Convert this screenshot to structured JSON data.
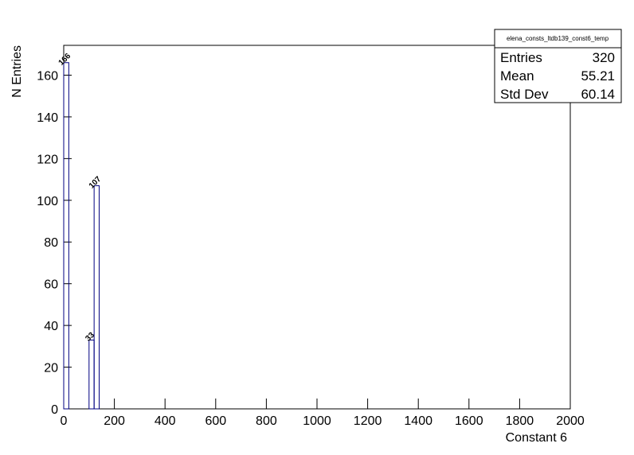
{
  "chart_data": {
    "type": "histogram",
    "x_label": "Constant 6",
    "y_label": "N Entries",
    "bins": [
      0,
      20,
      40,
      60,
      80,
      100,
      120,
      140,
      160,
      180,
      200,
      220,
      240,
      260,
      280,
      300,
      320,
      340,
      360,
      380,
      400,
      420,
      440,
      460,
      480,
      500,
      520,
      540,
      560,
      580,
      600,
      620,
      640,
      660,
      680,
      700,
      720,
      740,
      760,
      780,
      800,
      820,
      840,
      860,
      880,
      900,
      920,
      940,
      960,
      980,
      1000,
      1020,
      1040,
      1060,
      1080,
      1100,
      1120,
      1140,
      1160,
      1180,
      1200,
      1220,
      1240,
      1260,
      1280,
      1300,
      1320,
      1340,
      1360,
      1380,
      1400,
      1420,
      1440,
      1460,
      1480,
      1500,
      1520,
      1540,
      1560,
      1580,
      1600,
      1620,
      1640,
      1660,
      1680,
      1700,
      1720,
      1740,
      1760,
      1780,
      1800,
      1820,
      1840,
      1860,
      1880,
      1900,
      1920,
      1940,
      1960,
      1980,
      2000
    ],
    "values": [
      166,
      0,
      0,
      0,
      0,
      33,
      107,
      0,
      0,
      0,
      0,
      0,
      0,
      0,
      0,
      0,
      0,
      0,
      0,
      0,
      0,
      0,
      0,
      0,
      0,
      0,
      0,
      0,
      0,
      0,
      0,
      0,
      0,
      0,
      0,
      0,
      0,
      0,
      0,
      0,
      0,
      0,
      0,
      0,
      0,
      0,
      0,
      0,
      0,
      0,
      0,
      0,
      0,
      0,
      0,
      0,
      0,
      0,
      0,
      0,
      0,
      0,
      0,
      0,
      0,
      0,
      0,
      0,
      0,
      0,
      0,
      0,
      0,
      0,
      0,
      0,
      0,
      0,
      0,
      0,
      0,
      0,
      0,
      0,
      0,
      0,
      0,
      0,
      0,
      0,
      0,
      0,
      0,
      0,
      0,
      0,
      0,
      0,
      0,
      0
    ],
    "color": "#000080",
    "xlim": [
      0,
      2000
    ],
    "xticks": [
      0,
      200,
      400,
      600,
      800,
      1000,
      1200,
      1400,
      1600,
      1800,
      2000
    ],
    "ylim": [
      0,
      174.3
    ],
    "yticks": [
      0,
      20,
      40,
      60,
      80,
      100,
      120,
      140,
      160
    ],
    "stats": {
      "title": "elena_consts_ltdb139_const6_temp",
      "rows": [
        {
          "label": "Entries",
          "value": 320
        },
        {
          "label": "Mean",
          "value": 55.21
        },
        {
          "label": "Std Dev",
          "value": 60.14
        }
      ]
    }
  }
}
